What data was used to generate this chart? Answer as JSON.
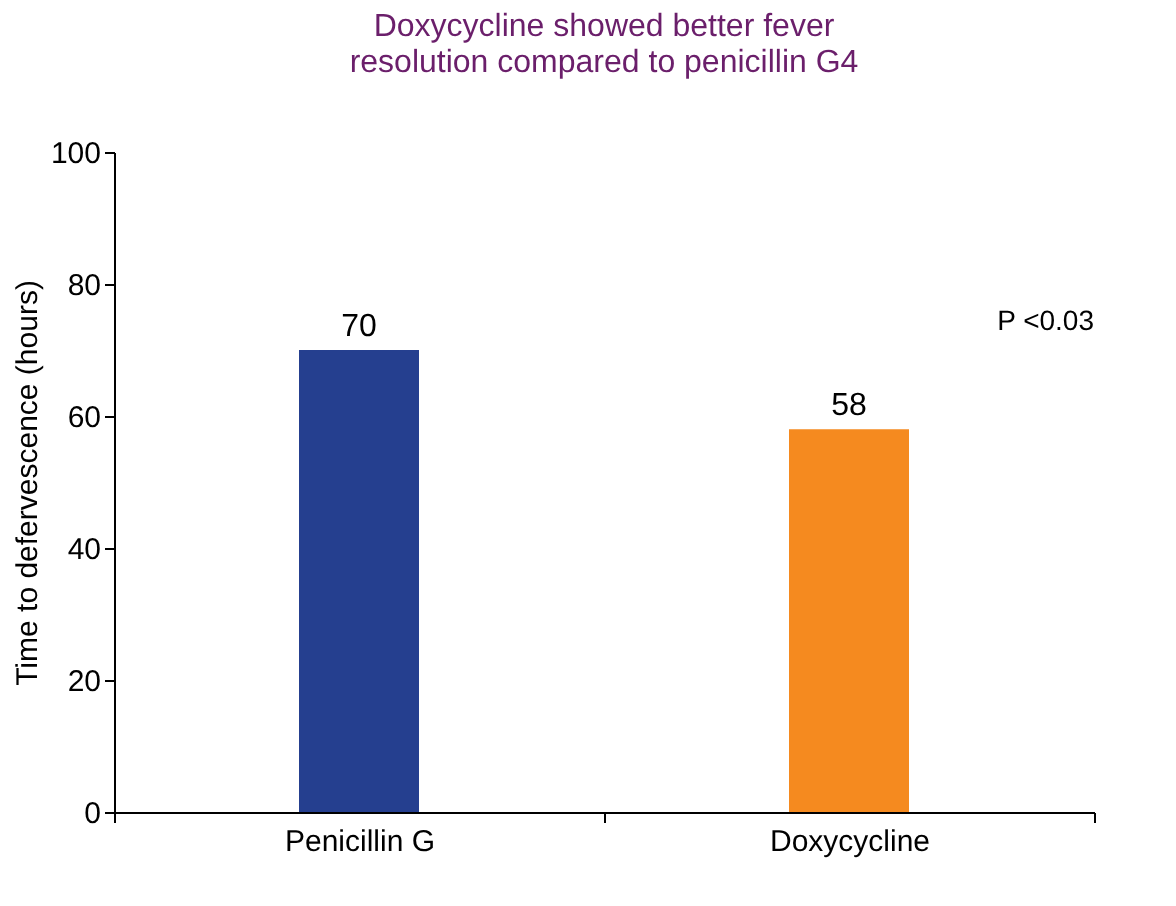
{
  "chart_data": {
    "type": "bar",
    "title": [
      "Doxycycline showed better fever",
      "resolution compared to penicillin G4"
    ],
    "ylabel": "Time to defervescence (hours)",
    "categories": [
      "Penicillin G",
      "Doxycycline"
    ],
    "values": [
      70,
      58
    ],
    "colors": [
      "#253f8f",
      "#f58a1f"
    ],
    "ylim": [
      0,
      100
    ],
    "yticks": [
      0,
      20,
      40,
      60,
      80,
      100
    ],
    "grid": false,
    "legend": false,
    "data_labels": true,
    "annotations": [
      "P <0.03"
    ]
  }
}
